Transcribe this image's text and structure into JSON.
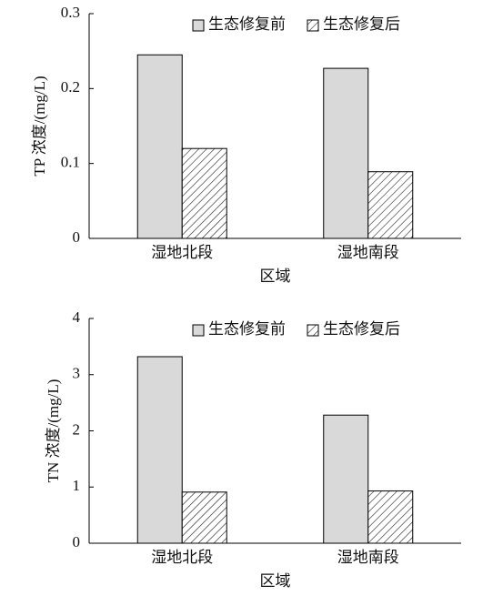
{
  "chart_data": [
    {
      "type": "bar",
      "x_label": "区域",
      "y_label": "TP 浓度/(mg/L)",
      "categories": [
        "湿地北段",
        "湿地南段"
      ],
      "series": [
        {
          "name": "生态修复前",
          "color": "#d9d9d9",
          "pattern": "solid",
          "values": [
            0.245,
            0.227
          ]
        },
        {
          "name": "生态修复后",
          "color": "#ffffff",
          "pattern": "hatch",
          "values": [
            0.12,
            0.089
          ]
        }
      ],
      "ylim": [
        0,
        0.3
      ],
      "yticks": [
        0,
        0.1,
        0.2,
        0.3
      ],
      "legend": "top-right"
    },
    {
      "type": "bar",
      "x_label": "区域",
      "y_label": "TN 浓度/(mg/L)",
      "categories": [
        "湿地北段",
        "湿地南段"
      ],
      "series": [
        {
          "name": "生态修复前",
          "color": "#d9d9d9",
          "pattern": "solid",
          "values": [
            3.32,
            2.28
          ]
        },
        {
          "name": "生态修复后",
          "color": "#ffffff",
          "pattern": "hatch",
          "values": [
            0.91,
            0.93
          ]
        }
      ],
      "ylim": [
        0,
        4
      ],
      "yticks": [
        0,
        1,
        2,
        3,
        4
      ],
      "legend": "top-right"
    }
  ]
}
